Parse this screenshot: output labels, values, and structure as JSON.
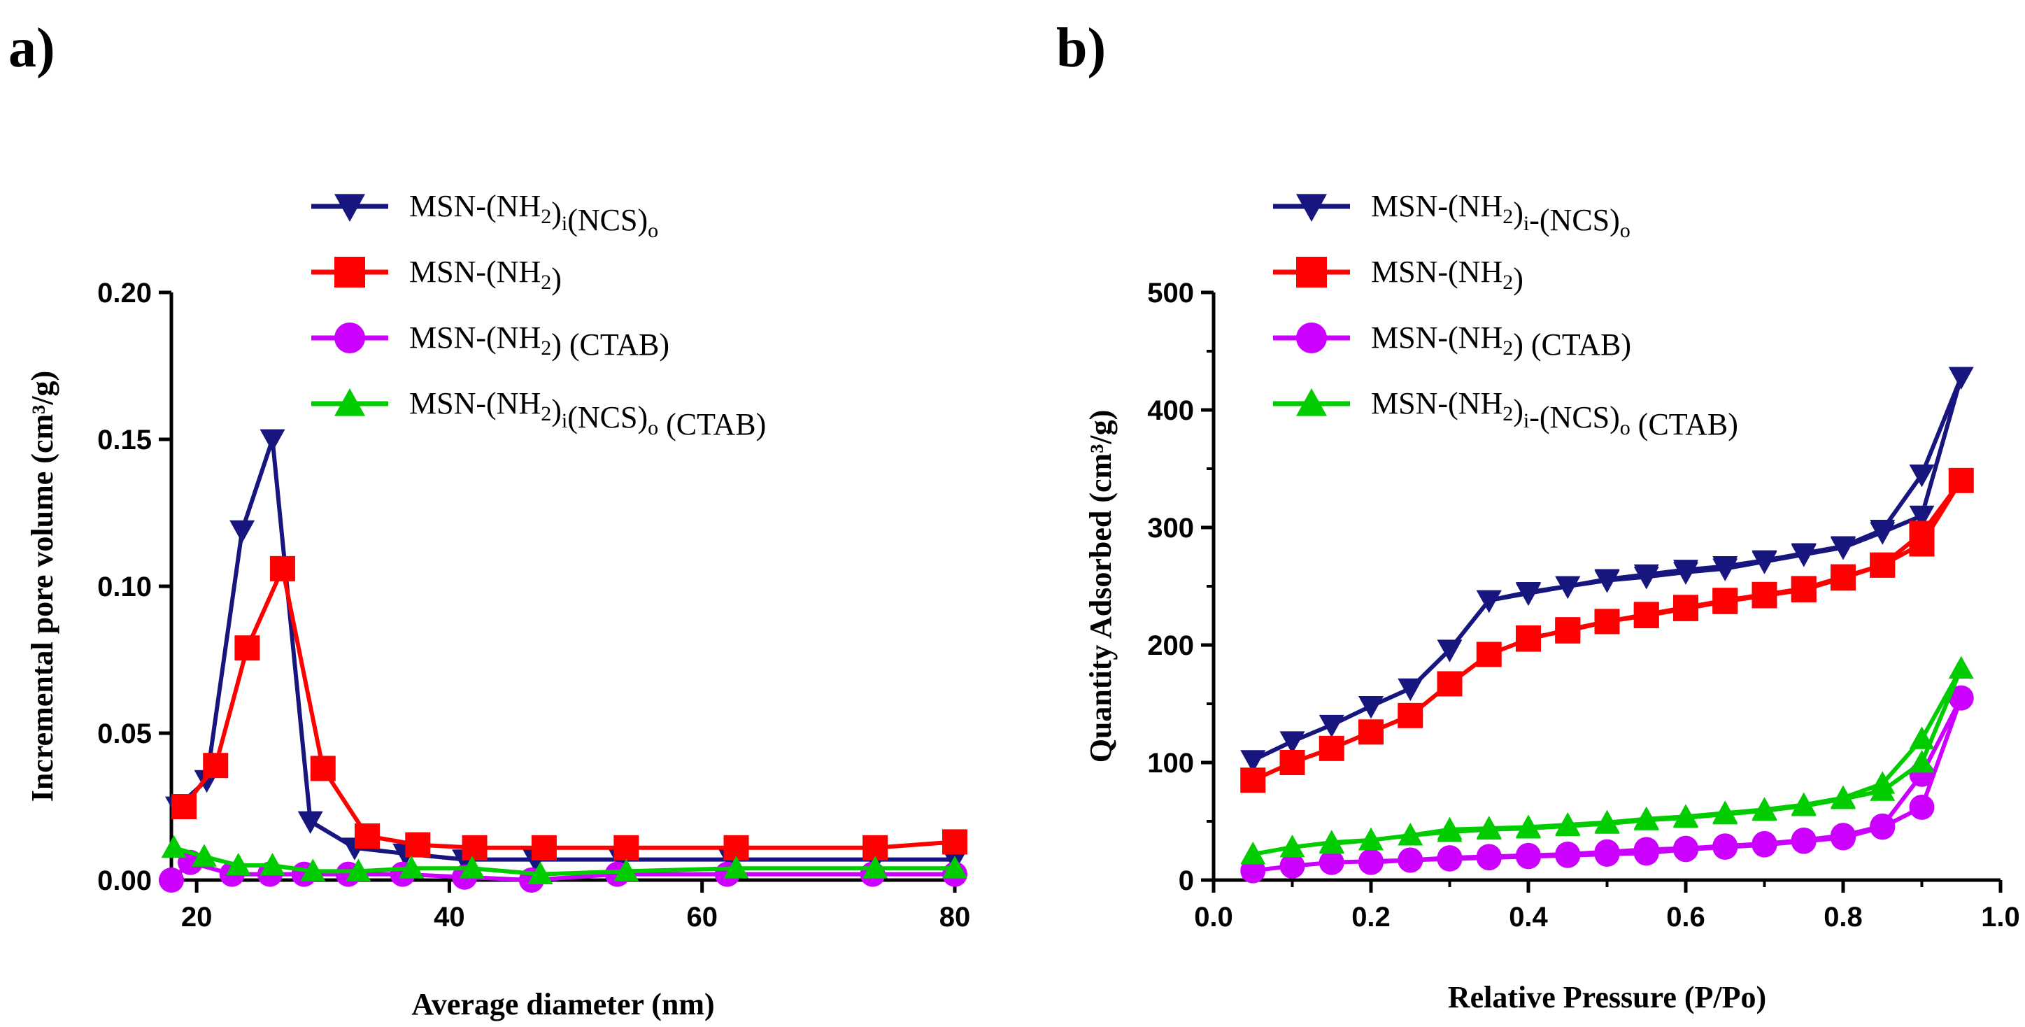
{
  "chart_data": [
    {
      "panel": "a)",
      "type": "line",
      "title": "",
      "xlabel": "Average diameter (nm)",
      "ylabel": "Incremental pore volume (cm³/g)",
      "xlim": [
        18,
        80
      ],
      "ylim": [
        0,
        0.2
      ],
      "xticks": [
        20,
        40,
        60,
        80
      ],
      "yticks": [
        0.0,
        0.05,
        0.1,
        0.15,
        0.2
      ],
      "xtick_labels": [
        "20",
        "40",
        "60",
        "80"
      ],
      "ytick_labels": [
        "0.00",
        "0.05",
        "0.10",
        "0.15",
        "0.20"
      ],
      "legend_placement": "top-center",
      "series": [
        {
          "name": "MSN-(NH2)i(NCS)o",
          "color": "#16167e",
          "marker": "triangle-down",
          "legend": {
            "base": "MSN-(NH",
            "sub1": "2",
            "mid": ")",
            "sub2": "i",
            "mid2": "(NCS)",
            "sub3": "o",
            "tail": ""
          },
          "x": [
            18.5,
            20.8,
            23.6,
            26.0,
            29.0,
            32.5,
            36.5,
            41.2,
            46.8,
            53.6,
            62.3,
            73.7,
            80.0
          ],
          "y": [
            0.025,
            0.034,
            0.119,
            0.15,
            0.02,
            0.011,
            0.009,
            0.007,
            0.007,
            0.007,
            0.007,
            0.007,
            0.007
          ]
        },
        {
          "name": "MSN-(NH2)",
          "color": "#ff0000",
          "marker": "square",
          "legend": {
            "base": "MSN-(NH",
            "sub1": "2",
            "mid": ")",
            "sub2": "",
            "mid2": "",
            "sub3": "",
            "tail": ""
          },
          "x": [
            19.0,
            21.5,
            24.0,
            26.8,
            30.0,
            33.5,
            37.5,
            42.0,
            47.5,
            54.0,
            62.7,
            73.7,
            80.0
          ],
          "y": [
            0.025,
            0.039,
            0.079,
            0.106,
            0.038,
            0.015,
            0.012,
            0.011,
            0.011,
            0.011,
            0.011,
            0.011,
            0.013
          ]
        },
        {
          "name": "MSN-(NH2) (CTAB)",
          "color": "#cc00ff",
          "marker": "circle",
          "legend": {
            "base": "MSN-(NH",
            "sub1": "2",
            "mid": ")",
            "sub2": "",
            "mid2": "",
            "sub3": "",
            "tail": " (CTAB)"
          },
          "x": [
            18.0,
            19.5,
            22.8,
            25.8,
            28.5,
            32.0,
            36.3,
            41.2,
            46.5,
            53.3,
            62.0,
            73.5,
            80.0
          ],
          "y": [
            0.0,
            0.006,
            0.002,
            0.002,
            0.002,
            0.002,
            0.002,
            0.001,
            0.0,
            0.002,
            0.002,
            0.002,
            0.002
          ]
        },
        {
          "name": "MSN-(NH2)i(NCS)o (CTAB)",
          "color": "#00cc00",
          "marker": "triangle-up",
          "legend": {
            "base": "MSN-(NH",
            "sub1": "2",
            "mid": ")",
            "sub2": "i",
            "mid2": "(NCS)",
            "sub3": "o",
            "tail": " (CTAB)"
          },
          "x": [
            18.2,
            20.6,
            23.3,
            26.0,
            29.2,
            32.8,
            37.0,
            41.8,
            47.2,
            54.0,
            62.7,
            73.7,
            80.0
          ],
          "y": [
            0.011,
            0.008,
            0.005,
            0.005,
            0.003,
            0.003,
            0.004,
            0.004,
            0.002,
            0.003,
            0.004,
            0.004,
            0.004
          ]
        }
      ]
    },
    {
      "panel": "b)",
      "type": "line",
      "title": "",
      "xlabel": "Relative Pressure (P/Po)",
      "ylabel": "Quantity Adsorbed (cm³/g)",
      "xlim": [
        0,
        1.0
      ],
      "ylim": [
        0,
        500
      ],
      "xticks": [
        0.0,
        0.2,
        0.4,
        0.6,
        0.8,
        1.0
      ],
      "yticks": [
        0,
        100,
        200,
        300,
        400,
        500
      ],
      "xtick_labels": [
        "0.0",
        "0.2",
        "0.4",
        "0.6",
        "0.8",
        "1.0"
      ],
      "ytick_labels": [
        "0",
        "100",
        "200",
        "300",
        "400",
        "500"
      ],
      "legend_placement": "top-center",
      "series": [
        {
          "name": "MSN-(NH2)i-(NCS)o",
          "color": "#16167e",
          "marker": "triangle-down",
          "legend": {
            "base": "MSN-(NH",
            "sub1": "2",
            "mid": ")",
            "sub2": "i",
            "mid2": "-(NCS)",
            "sub3": "o",
            "tail": ""
          },
          "x": [
            0.05,
            0.1,
            0.15,
            0.2,
            0.25,
            0.3,
            0.35,
            0.4,
            0.45,
            0.5,
            0.55,
            0.6,
            0.65,
            0.7,
            0.75,
            0.8,
            0.85,
            0.9,
            0.95,
            0.9,
            0.85,
            0.8,
            0.75,
            0.7,
            0.65,
            0.6,
            0.55,
            0.5,
            0.45,
            0.4,
            0.35
          ],
          "y": [
            102,
            118,
            132,
            148,
            163,
            196,
            238,
            245,
            250,
            256,
            260,
            264,
            267,
            272,
            278,
            284,
            298,
            345,
            428,
            310,
            296,
            283,
            277,
            271,
            265,
            262,
            258,
            255,
            250,
            244,
            238
          ]
        },
        {
          "name": "MSN-(NH2)",
          "color": "#ff0000",
          "marker": "square",
          "legend": {
            "base": "MSN-(NH",
            "sub1": "2",
            "mid": ")",
            "sub2": "",
            "mid2": "",
            "sub3": "",
            "tail": ""
          },
          "x": [
            0.05,
            0.1,
            0.15,
            0.2,
            0.25,
            0.3,
            0.35,
            0.4,
            0.45,
            0.5,
            0.55,
            0.6,
            0.65,
            0.7,
            0.75,
            0.8,
            0.85,
            0.9,
            0.95,
            0.9,
            0.85,
            0.8,
            0.75,
            0.7,
            0.65,
            0.6,
            0.55,
            0.5,
            0.45,
            0.4
          ],
          "y": [
            85,
            100,
            112,
            126,
            140,
            167,
            192,
            205,
            213,
            220,
            226,
            232,
            238,
            243,
            248,
            258,
            268,
            295,
            340,
            286,
            268,
            257,
            247,
            242,
            237,
            231,
            225,
            220,
            212,
            206
          ]
        },
        {
          "name": "MSN-(NH2) (CTAB)",
          "color": "#cc00ff",
          "marker": "circle",
          "legend": {
            "base": "MSN-(NH",
            "sub1": "2",
            "mid": ")",
            "sub2": "",
            "mid2": "",
            "sub3": "",
            "tail": " (CTAB)"
          },
          "x": [
            0.05,
            0.1,
            0.15,
            0.2,
            0.25,
            0.3,
            0.35,
            0.4,
            0.45,
            0.5,
            0.55,
            0.6,
            0.65,
            0.7,
            0.75,
            0.8,
            0.85,
            0.9,
            0.95,
            0.9,
            0.85,
            0.8,
            0.75,
            0.7,
            0.65,
            0.6,
            0.55,
            0.5,
            0.45,
            0.4,
            0.35,
            0.3,
            0.25,
            0.2
          ],
          "y": [
            8,
            12,
            15,
            16,
            17,
            19,
            20,
            21,
            22,
            24,
            26,
            27,
            29,
            31,
            34,
            38,
            46,
            90,
            155,
            62,
            45,
            36,
            33,
            30,
            28,
            26,
            23,
            22,
            21,
            20,
            19,
            18,
            17,
            15
          ]
        },
        {
          "name": "MSN-(NH2)i-(NCS)o (CTAB)",
          "color": "#00cc00",
          "marker": "triangle-up",
          "legend": {
            "base": "MSN-(NH",
            "sub1": "2",
            "mid": ")",
            "sub2": "i",
            "mid2": "-(NCS)",
            "sub3": "o",
            "tail": " (CTAB)"
          },
          "x": [
            0.05,
            0.1,
            0.15,
            0.2,
            0.25,
            0.3,
            0.35,
            0.4,
            0.45,
            0.5,
            0.55,
            0.6,
            0.65,
            0.7,
            0.75,
            0.8,
            0.85,
            0.9,
            0.95,
            0.9,
            0.85,
            0.8,
            0.75,
            0.7,
            0.65,
            0.6,
            0.55,
            0.5,
            0.45,
            0.4,
            0.35,
            0.3,
            0.25,
            0.2,
            0.15
          ],
          "y": [
            22,
            28,
            32,
            34,
            38,
            43,
            44,
            45,
            47,
            49,
            52,
            54,
            57,
            60,
            64,
            70,
            82,
            120,
            180,
            100,
            76,
            69,
            63,
            59,
            56,
            53,
            51,
            48,
            46,
            44,
            43,
            41,
            38,
            34,
            31
          ]
        }
      ]
    }
  ]
}
